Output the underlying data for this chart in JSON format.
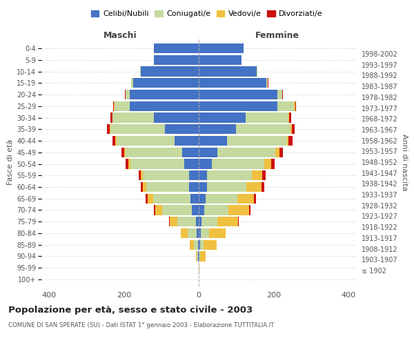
{
  "age_groups": [
    "100+",
    "95-99",
    "90-94",
    "85-89",
    "80-84",
    "75-79",
    "70-74",
    "65-69",
    "60-64",
    "55-59",
    "50-54",
    "45-49",
    "40-44",
    "35-39",
    "30-34",
    "25-29",
    "20-24",
    "15-19",
    "10-14",
    "5-9",
    "0-4"
  ],
  "birth_years": [
    "≤ 1902",
    "1903-1907",
    "1908-1912",
    "1913-1917",
    "1918-1922",
    "1923-1927",
    "1928-1932",
    "1933-1937",
    "1938-1942",
    "1943-1947",
    "1948-1952",
    "1953-1957",
    "1958-1962",
    "1963-1967",
    "1968-1972",
    "1973-1977",
    "1978-1982",
    "1983-1987",
    "1988-1992",
    "1993-1997",
    "1998-2002"
  ],
  "male_celibe": [
    0,
    0,
    2,
    2,
    5,
    8,
    18,
    22,
    25,
    25,
    38,
    45,
    65,
    90,
    120,
    185,
    185,
    175,
    155,
    120,
    120
  ],
  "male_coniugato": [
    0,
    0,
    3,
    10,
    25,
    50,
    80,
    100,
    115,
    125,
    145,
    150,
    155,
    145,
    110,
    40,
    10,
    5,
    2,
    0,
    0
  ],
  "male_vedovo": [
    0,
    0,
    3,
    12,
    18,
    20,
    18,
    15,
    10,
    5,
    5,
    4,
    3,
    2,
    1,
    1,
    1,
    0,
    0,
    0,
    0
  ],
  "male_divorziato": [
    0,
    0,
    0,
    0,
    0,
    2,
    4,
    5,
    5,
    5,
    8,
    8,
    8,
    8,
    5,
    3,
    2,
    1,
    0,
    0,
    0
  ],
  "female_celibe": [
    0,
    0,
    2,
    3,
    5,
    8,
    15,
    18,
    22,
    22,
    35,
    50,
    75,
    100,
    125,
    210,
    210,
    180,
    155,
    115,
    120
  ],
  "female_coniugato": [
    0,
    0,
    2,
    10,
    22,
    42,
    65,
    85,
    105,
    120,
    140,
    155,
    160,
    145,
    115,
    45,
    12,
    5,
    2,
    0,
    0
  ],
  "female_vedovo": [
    0,
    2,
    15,
    35,
    45,
    55,
    55,
    45,
    40,
    28,
    18,
    10,
    5,
    3,
    2,
    2,
    1,
    0,
    0,
    0,
    0
  ],
  "female_divorziato": [
    0,
    0,
    0,
    0,
    0,
    2,
    3,
    5,
    8,
    8,
    10,
    10,
    10,
    8,
    5,
    3,
    2,
    1,
    0,
    0,
    0
  ],
  "colors": {
    "celibe": "#4472C4",
    "coniugato": "#c5d9a0",
    "vedovo": "#f0c040",
    "divorziato": "#cc1010"
  },
  "title": "Popolazione per età, sesso e stato civile - 2003",
  "subtitle": "COMUNE DI SAN SPERATE (SU) - Dati ISTAT 1° gennaio 2003 - Elaborazione TUTTITALIA.IT",
  "xlabel_left": "Maschi",
  "xlabel_right": "Femmine",
  "ylabel_left": "Fasce di età",
  "ylabel_right": "Anni di nascita",
  "xlim": 420,
  "background_color": "#ffffff",
  "legend_labels": [
    "Celibi/Nubili",
    "Coniugati/e",
    "Vedovi/e",
    "Divorziati/e"
  ]
}
